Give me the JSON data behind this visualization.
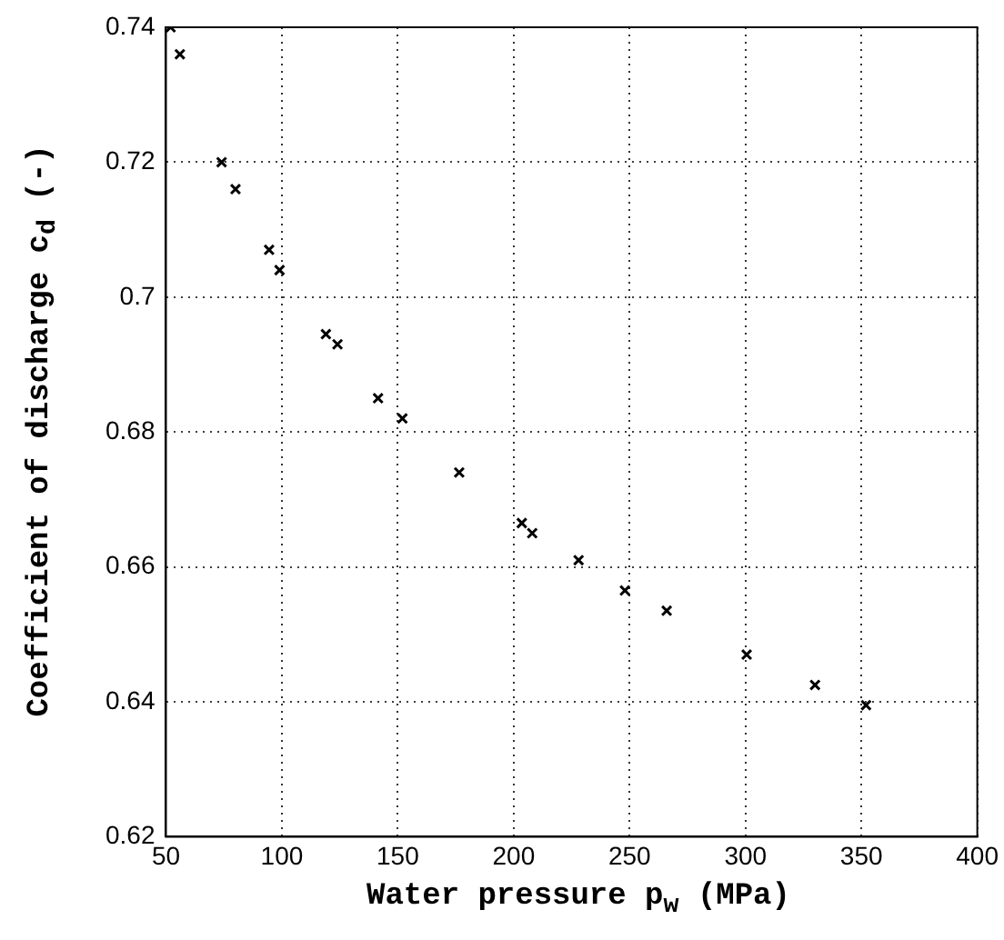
{
  "chart_data": {
    "type": "scatter",
    "xlabel": "Water pressure p$_{w}$ (MPa)",
    "ylabel": "Coefficient of discharge c$_{d}$ (-)",
    "x": [
      52,
      56,
      74,
      80,
      94.5,
      99,
      119,
      124,
      141.5,
      152,
      176.5,
      203.5,
      208,
      228,
      248,
      266,
      300.5,
      330,
      352
    ],
    "series": [
      {
        "color": "#000000",
        "values": [
          0.74,
          0.736,
          0.72,
          0.716,
          0.707,
          0.704,
          0.6945,
          0.693,
          0.685,
          0.682,
          0.674,
          0.6665,
          0.665,
          0.661,
          0.6565,
          0.6535,
          0.647,
          0.6425,
          0.6395
        ]
      }
    ],
    "xlim": [
      50,
      400
    ],
    "xticks": [
      50,
      100,
      150,
      200,
      250,
      300,
      350,
      400
    ],
    "ylim": [
      0.62,
      0.74
    ],
    "yticks": [
      0.62,
      0.64,
      0.66,
      0.68,
      0.7,
      0.72,
      0.74
    ],
    "grid": true,
    "marker": "cross",
    "legend": false
  }
}
